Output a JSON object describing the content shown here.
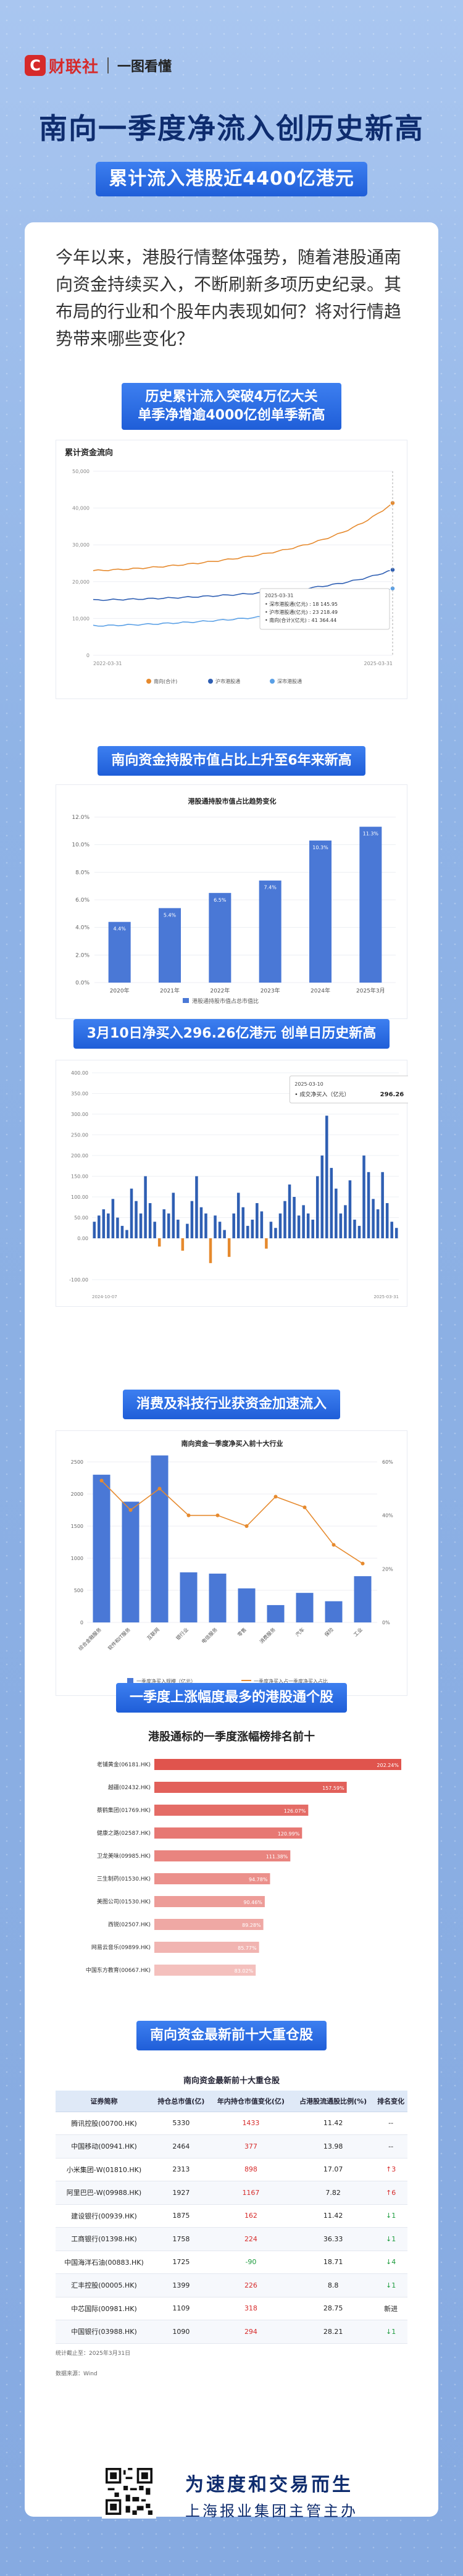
{
  "header": {
    "logo_glyph": "C",
    "brand": "财联社",
    "column": "一图看懂"
  },
  "title": "南向一季度净流入创历史新高",
  "subtitle": "累计流入港股近4400亿港元",
  "intro": "今年以来，港股行情整体强势，随着港股通南向资金持续买入，不断刷新多项历史纪录。其布局的行业和个股年内表现如何？将对行情趋势带来哪些变化？",
  "section1": {
    "title_line1": "历史累计流入突破4万亿大关",
    "title_line2": "单季净增逾4000亿创单季新高",
    "chart_title": "累计资金流向",
    "chart_data": {
      "type": "line",
      "x": [
        "2022-03-31",
        "2025-03-31"
      ],
      "yticks": [
        "0",
        "10,000",
        "20,000",
        "30,000",
        "40,000",
        "50,000"
      ],
      "ylim": [
        0,
        50000
      ],
      "series": [
        {
          "name": "南向(合计)",
          "color": "#e68a2e",
          "end_value": 41364.44
        },
        {
          "name": "沪市港股通",
          "color": "#2f5fb3",
          "end_value": 23218.49
        },
        {
          "name": "深市港股通",
          "color": "#5aa0e6",
          "end_value": 18145.95
        }
      ],
      "tooltip": {
        "date": "2025-03-31",
        "rows": [
          "• 深市港股通(亿元) : 18 145.95",
          "• 沪市港股通(亿元) : 23 218.49",
          "• 南向(合计)(亿元) : 41 364.44"
        ]
      }
    }
  },
  "section2": {
    "title": "南向资金持股市值占比上升至6年来新高",
    "chart_title": "港股通持股市值占比趋势变化",
    "chart_data": {
      "type": "bar",
      "categories": [
        "2020年",
        "2021年",
        "2022年",
        "2023年",
        "2024年",
        "2025年3月"
      ],
      "values": [
        4.4,
        5.4,
        6.5,
        7.4,
        10.3,
        11.3
      ],
      "value_labels": [
        "4.4%",
        "5.4%",
        "6.5%",
        "7.4%",
        "10.3%",
        "11.3%"
      ],
      "yticks": [
        "0.0%",
        "2.0%",
        "4.0%",
        "6.0%",
        "8.0%",
        "10.0%",
        "12.0%"
      ],
      "ylim": [
        0,
        12
      ],
      "legend": "港股通持股市值占总市值比"
    }
  },
  "section3": {
    "title": "3月10日净买入296.26亿港元 创单日历史新高",
    "chart_data": {
      "type": "bar",
      "yticks": [
        "-100.00",
        "0.00",
        "50.00",
        "100.00",
        "150.00",
        "200.00",
        "250.00",
        "300.00",
        "350.00",
        "400.00"
      ],
      "ylim": [
        -100,
        400
      ],
      "x_start": "2024-10-07",
      "x_end": "2025-03-31",
      "values": [
        40,
        55,
        70,
        60,
        95,
        50,
        30,
        20,
        120,
        90,
        60,
        150,
        85,
        40,
        -20,
        70,
        60,
        110,
        45,
        -30,
        35,
        90,
        150,
        75,
        60,
        -60,
        55,
        40,
        20,
        -45,
        60,
        110,
        75,
        30,
        45,
        85,
        65,
        -25,
        40,
        25,
        60,
        90,
        130,
        100,
        55,
        80,
        60,
        45,
        150,
        200,
        296.26,
        170,
        120,
        60,
        80,
        140,
        45,
        30,
        200,
        160,
        95,
        70,
        160,
        85,
        40,
        25
      ],
      "tooltip": {
        "date": "2025-03-10",
        "label": "成交净买入（亿元）",
        "value": "296.26"
      }
    }
  },
  "section4": {
    "title": "消费及科技行业获资金加速流入",
    "chart_title": "南向资金一季度净买入前十大行业",
    "chart_data": {
      "type": "bar",
      "categories": [
        "综合金融服务",
        "软件和IT服务",
        "互联网",
        "银行业",
        "电信服务",
        "零售",
        "消费服务",
        "汽车",
        "保险",
        "工业"
      ],
      "series": [
        {
          "name": "一季度净买入规模（亿元）",
          "values": [
            2300,
            1880,
            2600,
            780,
            760,
            530,
            270,
            460,
            330,
            720
          ]
        },
        {
          "name": "一季度净买入占一季度净买入占比",
          "values": [
            53,
            42,
            50,
            40,
            40,
            36,
            47,
            43,
            29,
            22
          ]
        }
      ],
      "yticks_left": [
        "0",
        "500",
        "1000",
        "1500",
        "2000",
        "2500"
      ],
      "yticks_right": [
        "0%",
        "20%",
        "40%",
        "60%"
      ],
      "ylim_left": [
        0,
        2500
      ],
      "ylim_right": [
        0,
        60
      ]
    }
  },
  "section5": {
    "title": "一季度上涨幅度最多的港股通个股",
    "chart_title": "港股通标的一季度涨幅榜排名前十",
    "chart_data": {
      "type": "bar",
      "categories": [
        "老铺黄金(06181.HK)",
        "越疆(02432.HK)",
        "蔡鹤集团(01769.HK)",
        "健康之路(02587.HK)",
        "卫龙美味(09985.HK)",
        "三生制药(01530.HK)",
        "美图公司(01530.HK)",
        "西锐(02507.HK)",
        "网易云音乐(09899.HK)",
        "中国东方教育(00667.HK)"
      ],
      "values": [
        202.24,
        157.59,
        126.07,
        120.99,
        111.38,
        94.78,
        90.46,
        89.28,
        85.77,
        83.02
      ],
      "value_labels": [
        "202.24%",
        "157.59%",
        "126.07%",
        "120.99%",
        "111.38%",
        "94.78%",
        "90.46%",
        "89.28%",
        "85.77%",
        "83.02%"
      ]
    }
  },
  "section6": {
    "title": "南向资金最新前十大重仓股",
    "table_title": "南向资金最新前十大重仓股",
    "columns": [
      "证券简称",
      "持仓总市值(亿)",
      "年内持仓市值变化(亿)",
      "占港股流通股比例(%)",
      "排名变化"
    ],
    "rows": [
      {
        "name": "腾讯控股(00700.HK)",
        "cap": "5330",
        "chg": "1433",
        "pct": "11.42",
        "rank": "--"
      },
      {
        "name": "中国移动(00941.HK)",
        "cap": "2464",
        "chg": "377",
        "pct": "13.98",
        "rank": "--"
      },
      {
        "name": "小米集团-W(01810.HK)",
        "cap": "2313",
        "chg": "898",
        "pct": "17.07",
        "rank": "↑3"
      },
      {
        "name": "阿里巴巴-W(09988.HK)",
        "cap": "1927",
        "chg": "1167",
        "pct": "7.82",
        "rank": "↑6"
      },
      {
        "name": "建设银行(00939.HK)",
        "cap": "1875",
        "chg": "162",
        "pct": "11.42",
        "rank": "↓1"
      },
      {
        "name": "工商银行(01398.HK)",
        "cap": "1758",
        "chg": "224",
        "pct": "36.33",
        "rank": "↓1"
      },
      {
        "name": "中国海洋石油(00883.HK)",
        "cap": "1725",
        "chg": "-90",
        "pct": "18.71",
        "rank": "↓4"
      },
      {
        "name": "汇丰控股(00005.HK)",
        "cap": "1399",
        "chg": "226",
        "pct": "8.8",
        "rank": "↓1"
      },
      {
        "name": "中芯国际(00981.HK)",
        "cap": "1109",
        "chg": "318",
        "pct": "28.75",
        "rank": "新进"
      },
      {
        "name": "中国银行(03988.HK)",
        "cap": "1090",
        "chg": "294",
        "pct": "28.21",
        "rank": "↓1"
      }
    ],
    "note": "统计截止至：2025年3月31日"
  },
  "source": "数据来源：Wind",
  "footer": {
    "line1": "为速度和交易而生",
    "line2": "上海报业集团主管主办"
  }
}
